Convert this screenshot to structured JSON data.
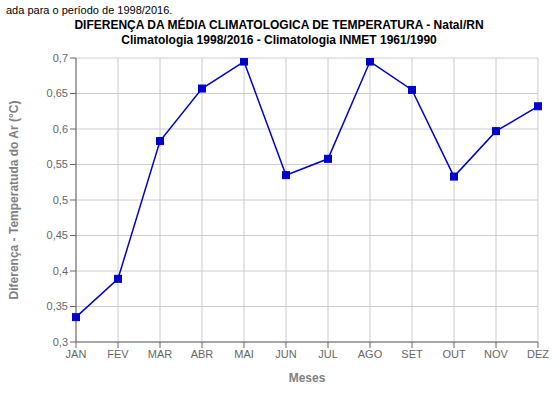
{
  "chart_data": {
    "type": "line",
    "caption": "ada para o período de 1998/2016.",
    "title": "DIFERENÇA DA MÉDIA CLIMATOLOGICA DE TEMPERATURA - Natal/RN",
    "subtitle": "Climatologia 1998/2016 - Climatologia INMET 1961/1990",
    "xlabel": "Meses",
    "ylabel": "Diferença - Temperatuda do Ar (°C)",
    "categories": [
      "JAN",
      "FEV",
      "MAR",
      "ABR",
      "MAI",
      "JUN",
      "JUL",
      "AGO",
      "SET",
      "OUT",
      "NOV",
      "DEZ"
    ],
    "values": [
      0.335,
      0.389,
      0.583,
      0.657,
      0.695,
      0.535,
      0.558,
      0.695,
      0.655,
      0.533,
      0.597,
      0.632
    ],
    "ylim": [
      0.3,
      0.7
    ],
    "yticks": [
      {
        "value": 0.3,
        "label": "0,3"
      },
      {
        "value": 0.35,
        "label": "0,35"
      },
      {
        "value": 0.4,
        "label": "0,4"
      },
      {
        "value": 0.45,
        "label": "0,45"
      },
      {
        "value": 0.5,
        "label": "0,5"
      },
      {
        "value": 0.55,
        "label": "0,55"
      },
      {
        "value": 0.6,
        "label": "0,6"
      },
      {
        "value": 0.65,
        "label": "0,65"
      },
      {
        "value": 0.7,
        "label": "0,7"
      }
    ],
    "color": "#0000cc",
    "marker": "square",
    "grid": true
  }
}
